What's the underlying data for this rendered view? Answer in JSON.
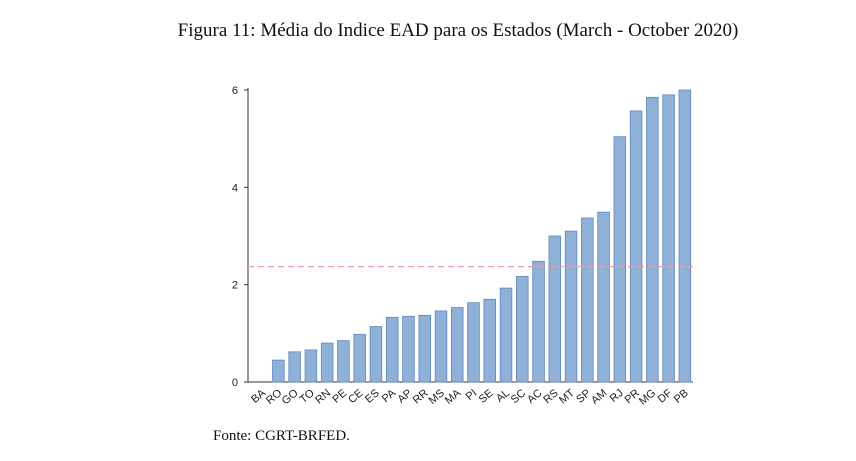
{
  "figure": {
    "caption": "Figura 11: Média do Indice EAD para os Estados (March - October 2020)",
    "source": "Fonte: CGRT-BRFED."
  },
  "chart_data": {
    "type": "bar",
    "title": "",
    "xlabel": "",
    "ylabel": "",
    "categories": [
      "BA",
      "RO",
      "GO",
      "TO",
      "RN",
      "PE",
      "CE",
      "ES",
      "PA",
      "AP",
      "RR",
      "MS",
      "MA",
      "PI",
      "SE",
      "AL",
      "SC",
      "AC",
      "RS",
      "MT",
      "SP",
      "AM",
      "RJ",
      "PR",
      "MG",
      "DF",
      "PB"
    ],
    "values": [
      0.0,
      0.45,
      0.62,
      0.66,
      0.8,
      0.85,
      0.98,
      1.14,
      1.33,
      1.35,
      1.37,
      1.46,
      1.53,
      1.63,
      1.7,
      1.93,
      2.17,
      2.48,
      3.0,
      3.1,
      3.37,
      3.49,
      5.04,
      5.57,
      5.85,
      5.9,
      6.0
    ],
    "ylim": [
      0,
      6
    ],
    "yticks": [
      0,
      2,
      4,
      6
    ],
    "reference_line": {
      "value": 2.37,
      "style": "dashed",
      "color": "#e8a0a8"
    },
    "bar_color": "#8fb1d8",
    "bar_edge_color": "#5f88bd",
    "grid": false,
    "legend": "none"
  }
}
